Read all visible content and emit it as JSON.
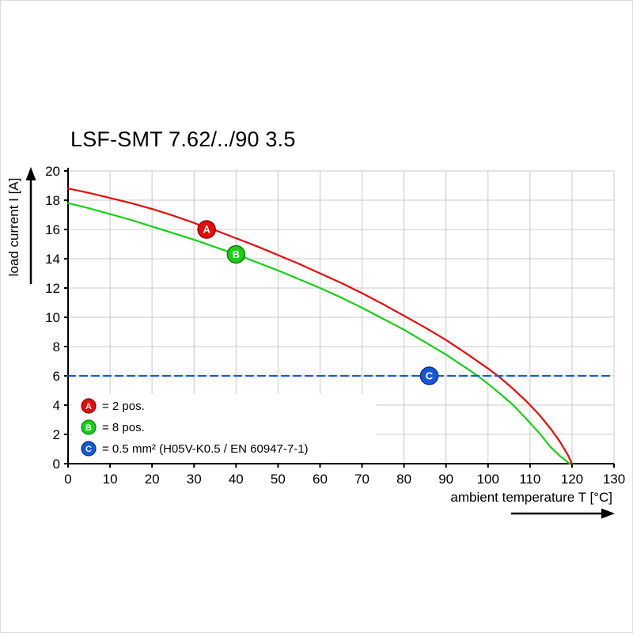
{
  "chart_data": {
    "type": "line",
    "title": "LSF-SMT 7.62/../90 3.5",
    "xlabel": "ambient temperature T [°C]",
    "ylabel": "load current I [A]",
    "xlim": [
      0,
      130
    ],
    "ylim": [
      0,
      20
    ],
    "xticks": [
      0,
      10,
      20,
      30,
      40,
      50,
      60,
      70,
      80,
      90,
      100,
      110,
      120,
      130
    ],
    "yticks": [
      0,
      2,
      4,
      6,
      8,
      10,
      12,
      14,
      16,
      18,
      20
    ],
    "grid": true,
    "grid_color": "#c8c8c8",
    "axis_color": "#000000",
    "legend_position": "bottom-left",
    "series": [
      {
        "id": "A",
        "legend_label": "= 2 pos.",
        "color": "#e60c0c",
        "edge_color": "#8f0000",
        "dashed": false,
        "marker": {
          "x": 33,
          "y": 16,
          "label": "A"
        },
        "points": [
          [
            0,
            18.8
          ],
          [
            5,
            18.5
          ],
          [
            10,
            18.15
          ],
          [
            15,
            17.8
          ],
          [
            20,
            17.4
          ],
          [
            25,
            16.95
          ],
          [
            30,
            16.45
          ],
          [
            33,
            16.1
          ],
          [
            35,
            15.95
          ],
          [
            40,
            15.4
          ],
          [
            45,
            14.85
          ],
          [
            50,
            14.25
          ],
          [
            55,
            13.65
          ],
          [
            60,
            13.0
          ],
          [
            65,
            12.35
          ],
          [
            70,
            11.65
          ],
          [
            75,
            10.9
          ],
          [
            80,
            10.1
          ],
          [
            85,
            9.3
          ],
          [
            90,
            8.45
          ],
          [
            95,
            7.5
          ],
          [
            100,
            6.5
          ],
          [
            103,
            5.85
          ],
          [
            106,
            5.1
          ],
          [
            109,
            4.3
          ],
          [
            112,
            3.4
          ],
          [
            115,
            2.35
          ],
          [
            117,
            1.55
          ],
          [
            119,
            0.6
          ],
          [
            120,
            0
          ]
        ]
      },
      {
        "id": "B",
        "legend_label": "= 8 pos.",
        "color": "#16d016",
        "edge_color": "#0b7a0b",
        "dashed": false,
        "marker": {
          "x": 40,
          "y": 14.3,
          "label": "B"
        },
        "points": [
          [
            0,
            17.8
          ],
          [
            5,
            17.45
          ],
          [
            10,
            17.05
          ],
          [
            15,
            16.65
          ],
          [
            20,
            16.2
          ],
          [
            25,
            15.75
          ],
          [
            30,
            15.3
          ],
          [
            35,
            14.8
          ],
          [
            40,
            14.3
          ],
          [
            45,
            13.75
          ],
          [
            50,
            13.2
          ],
          [
            55,
            12.6
          ],
          [
            60,
            12.0
          ],
          [
            65,
            11.35
          ],
          [
            70,
            10.65
          ],
          [
            75,
            9.9
          ],
          [
            80,
            9.15
          ],
          [
            85,
            8.3
          ],
          [
            90,
            7.45
          ],
          [
            95,
            6.5
          ],
          [
            98,
            5.9
          ],
          [
            100,
            5.45
          ],
          [
            103,
            4.75
          ],
          [
            106,
            4.0
          ],
          [
            109,
            3.1
          ],
          [
            112,
            2.15
          ],
          [
            115,
            1.1
          ],
          [
            117,
            0.55
          ],
          [
            119,
            0.1
          ],
          [
            119.5,
            0
          ]
        ]
      },
      {
        "id": "C",
        "legend_label": "= 0.5 mm² (H05V-K0.5 / EN 60947-7-1)",
        "color": "#1659d6",
        "edge_color": "#0a2f7a",
        "dashed": true,
        "marker": {
          "x": 86,
          "y": 6,
          "label": "C"
        },
        "points": [
          [
            0,
            6
          ],
          [
            130,
            6
          ]
        ]
      }
    ]
  }
}
